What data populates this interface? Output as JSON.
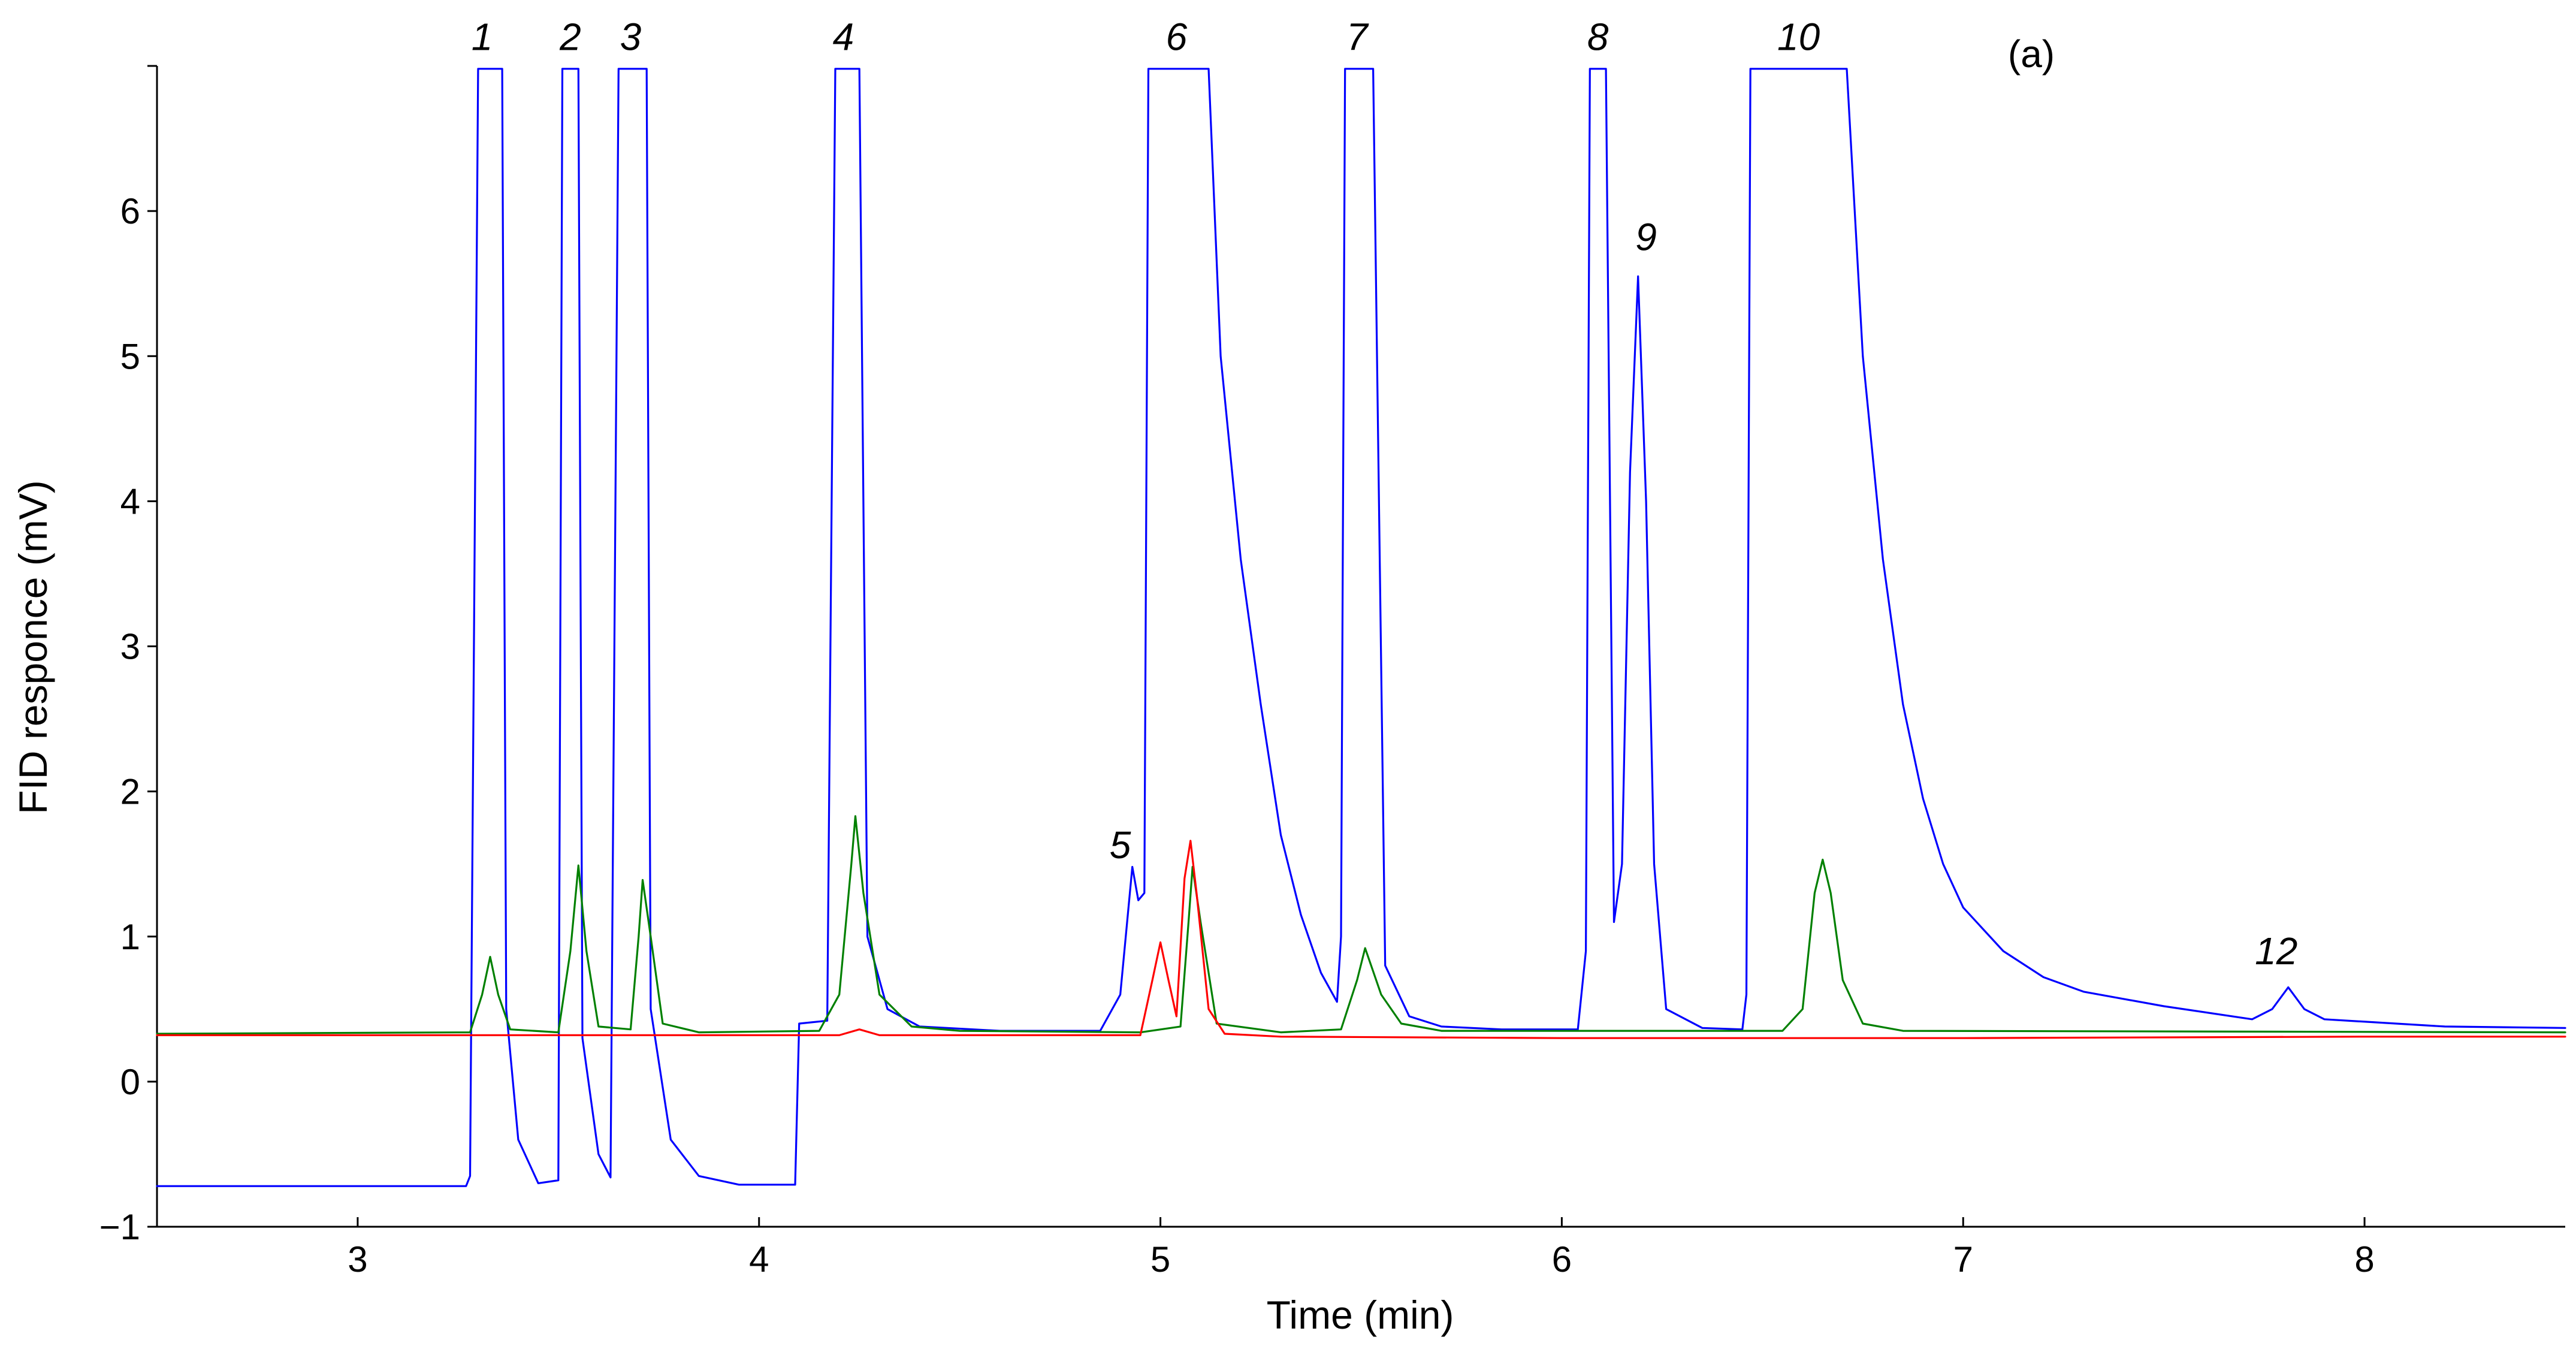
{
  "chart_data": {
    "type": "line",
    "title": "",
    "panel_label": "(a)",
    "xlabel": "Time (min)",
    "ylabel": "FID responce (mV)",
    "xlim": [
      2.5,
      8.5
    ],
    "ylim": [
      -1,
      7
    ],
    "x_ticks": [
      3,
      4,
      5,
      6,
      7,
      8
    ],
    "x_tick_labels": [
      "3",
      "4",
      "5",
      "6",
      "7",
      "8"
    ],
    "y_ticks": [
      -1,
      0,
      1,
      2,
      3,
      4,
      5,
      6
    ],
    "y_tick_labels": [
      "−1",
      "0",
      "1",
      "2",
      "3",
      "4",
      "5",
      "6"
    ],
    "grid": false,
    "series": [
      {
        "name": "blue trace",
        "color": "#0000ff",
        "points": [
          [
            2.5,
            -0.72
          ],
          [
            3.27,
            -0.72
          ],
          [
            3.28,
            -0.65
          ],
          [
            3.3,
            6.98
          ],
          [
            3.36,
            6.98
          ],
          [
            3.37,
            0.5
          ],
          [
            3.4,
            -0.4
          ],
          [
            3.45,
            -0.7
          ],
          [
            3.5,
            -0.68
          ],
          [
            3.51,
            6.98
          ],
          [
            3.55,
            6.98
          ],
          [
            3.56,
            0.3
          ],
          [
            3.6,
            -0.5
          ],
          [
            3.63,
            -0.66
          ],
          [
            3.65,
            6.98
          ],
          [
            3.72,
            6.98
          ],
          [
            3.73,
            0.5
          ],
          [
            3.78,
            -0.4
          ],
          [
            3.85,
            -0.65
          ],
          [
            3.95,
            -0.71
          ],
          [
            4.09,
            -0.71
          ],
          [
            4.1,
            0.4
          ],
          [
            4.17,
            0.42
          ],
          [
            4.19,
            6.98
          ],
          [
            4.25,
            6.98
          ],
          [
            4.27,
            1.0
          ],
          [
            4.32,
            0.5
          ],
          [
            4.4,
            0.38
          ],
          [
            4.6,
            0.35
          ],
          [
            4.85,
            0.35
          ],
          [
            4.9,
            0.6
          ],
          [
            4.93,
            1.48
          ],
          [
            4.945,
            1.25
          ],
          [
            4.96,
            1.3
          ],
          [
            4.97,
            6.98
          ],
          [
            5.12,
            6.98
          ],
          [
            5.15,
            5.0
          ],
          [
            5.2,
            3.6
          ],
          [
            5.25,
            2.6
          ],
          [
            5.3,
            1.7
          ],
          [
            5.35,
            1.15
          ],
          [
            5.4,
            0.75
          ],
          [
            5.44,
            0.55
          ],
          [
            5.45,
            1.0
          ],
          [
            5.46,
            6.98
          ],
          [
            5.53,
            6.98
          ],
          [
            5.56,
            0.8
          ],
          [
            5.62,
            0.45
          ],
          [
            5.7,
            0.38
          ],
          [
            5.85,
            0.36
          ],
          [
            6.04,
            0.36
          ],
          [
            6.06,
            0.9
          ],
          [
            6.07,
            6.98
          ],
          [
            6.11,
            6.98
          ],
          [
            6.13,
            1.1
          ],
          [
            6.15,
            1.5
          ],
          [
            6.17,
            4.2
          ],
          [
            6.19,
            5.55
          ],
          [
            6.21,
            4.0
          ],
          [
            6.23,
            1.5
          ],
          [
            6.26,
            0.5
          ],
          [
            6.35,
            0.37
          ],
          [
            6.45,
            0.36
          ],
          [
            6.46,
            0.6
          ],
          [
            6.47,
            6.98
          ],
          [
            6.71,
            6.98
          ],
          [
            6.75,
            5.0
          ],
          [
            6.8,
            3.6
          ],
          [
            6.85,
            2.6
          ],
          [
            6.9,
            1.95
          ],
          [
            6.95,
            1.5
          ],
          [
            7.0,
            1.2
          ],
          [
            7.1,
            0.9
          ],
          [
            7.2,
            0.72
          ],
          [
            7.3,
            0.62
          ],
          [
            7.5,
            0.52
          ],
          [
            7.72,
            0.43
          ],
          [
            7.77,
            0.5
          ],
          [
            7.81,
            0.65
          ],
          [
            7.85,
            0.5
          ],
          [
            7.9,
            0.43
          ],
          [
            8.2,
            0.38
          ],
          [
            8.5,
            0.37
          ]
        ]
      },
      {
        "name": "green trace",
        "color": "#008000",
        "points": [
          [
            2.5,
            0.33
          ],
          [
            3.28,
            0.34
          ],
          [
            3.31,
            0.6
          ],
          [
            3.33,
            0.86
          ],
          [
            3.35,
            0.6
          ],
          [
            3.38,
            0.36
          ],
          [
            3.5,
            0.34
          ],
          [
            3.53,
            0.9
          ],
          [
            3.55,
            1.49
          ],
          [
            3.57,
            0.9
          ],
          [
            3.6,
            0.38
          ],
          [
            3.68,
            0.36
          ],
          [
            3.7,
            1.0
          ],
          [
            3.71,
            1.39
          ],
          [
            3.73,
            1.0
          ],
          [
            3.76,
            0.4
          ],
          [
            3.85,
            0.34
          ],
          [
            4.15,
            0.35
          ],
          [
            4.2,
            0.6
          ],
          [
            4.23,
            1.5
          ],
          [
            4.24,
            1.83
          ],
          [
            4.26,
            1.3
          ],
          [
            4.3,
            0.6
          ],
          [
            4.38,
            0.38
          ],
          [
            4.5,
            0.35
          ],
          [
            4.95,
            0.34
          ],
          [
            5.05,
            0.38
          ],
          [
            5.07,
            1.1
          ],
          [
            5.08,
            1.48
          ],
          [
            5.1,
            1.1
          ],
          [
            5.14,
            0.4
          ],
          [
            5.3,
            0.34
          ],
          [
            5.45,
            0.36
          ],
          [
            5.49,
            0.7
          ],
          [
            5.51,
            0.92
          ],
          [
            5.55,
            0.6
          ],
          [
            5.6,
            0.4
          ],
          [
            5.7,
            0.35
          ],
          [
            6.55,
            0.35
          ],
          [
            6.6,
            0.5
          ],
          [
            6.63,
            1.3
          ],
          [
            6.65,
            1.53
          ],
          [
            6.67,
            1.3
          ],
          [
            6.7,
            0.7
          ],
          [
            6.75,
            0.4
          ],
          [
            6.85,
            0.35
          ],
          [
            8.5,
            0.34
          ]
        ]
      },
      {
        "name": "red trace",
        "color": "#ff0000",
        "points": [
          [
            2.5,
            0.32
          ],
          [
            4.2,
            0.32
          ],
          [
            4.25,
            0.36
          ],
          [
            4.3,
            0.32
          ],
          [
            4.95,
            0.32
          ],
          [
            4.98,
            0.7
          ],
          [
            5.0,
            0.96
          ],
          [
            5.02,
            0.7
          ],
          [
            5.04,
            0.45
          ],
          [
            5.06,
            1.4
          ],
          [
            5.075,
            1.66
          ],
          [
            5.09,
            1.3
          ],
          [
            5.12,
            0.5
          ],
          [
            5.16,
            0.33
          ],
          [
            5.3,
            0.31
          ],
          [
            6.0,
            0.3
          ],
          [
            7.0,
            0.3
          ],
          [
            8.0,
            0.31
          ],
          [
            8.5,
            0.31
          ]
        ]
      }
    ],
    "annotations": [
      {
        "text": "1",
        "x": 3.31,
        "y": 7.2
      },
      {
        "text": "2",
        "x": 3.53,
        "y": 7.2
      },
      {
        "text": "3",
        "x": 3.68,
        "y": 7.2
      },
      {
        "text": "4",
        "x": 4.21,
        "y": 7.2
      },
      {
        "text": "5",
        "x": 4.9,
        "y": 1.63
      },
      {
        "text": "6",
        "x": 5.04,
        "y": 7.2
      },
      {
        "text": "7",
        "x": 5.49,
        "y": 7.2
      },
      {
        "text": "8",
        "x": 6.09,
        "y": 7.2
      },
      {
        "text": "9",
        "x": 6.21,
        "y": 5.82
      },
      {
        "text": "10",
        "x": 6.59,
        "y": 7.2
      },
      {
        "text": "12",
        "x": 7.78,
        "y": 0.9
      }
    ]
  }
}
